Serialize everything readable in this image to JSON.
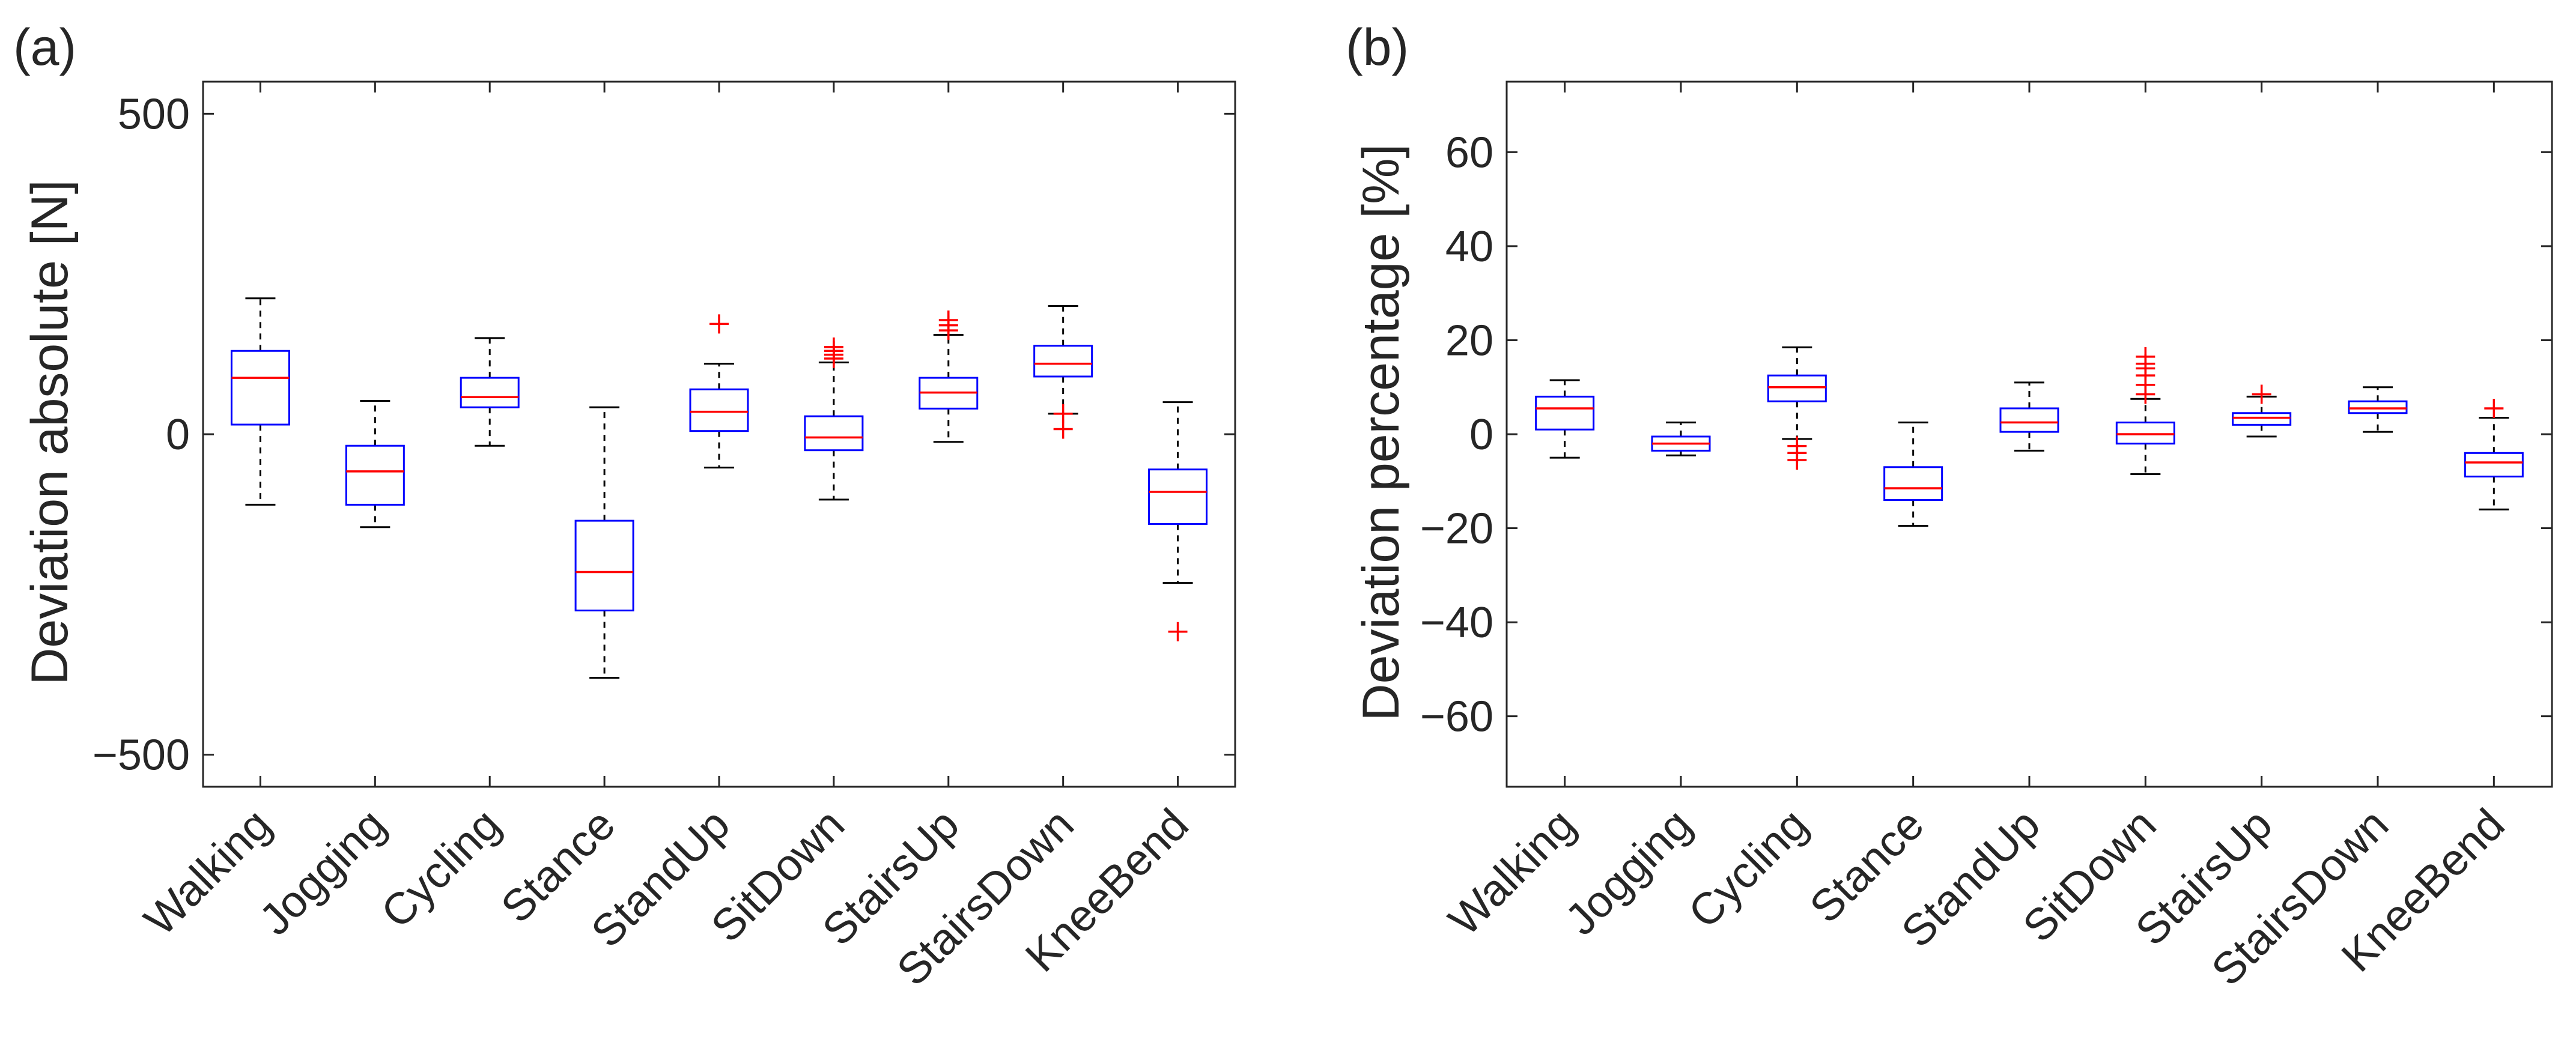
{
  "colors": {
    "box": "#0000FF",
    "median": "#FF0000",
    "whisker": "#000000",
    "outlier": "#FF0000",
    "axis": "#262626"
  },
  "chart_data": [
    {
      "type": "boxplot",
      "panel_label": "(a)",
      "title": "",
      "xlabel": "",
      "ylabel": "Deviation absolute [N]",
      "ylim": [
        -550,
        550
      ],
      "yticks": [
        -500,
        0,
        500
      ],
      "ytick_labels": [
        "−500",
        "0",
        "500"
      ],
      "grid": false,
      "categories": [
        "Walking",
        "Jogging",
        "Cycling",
        "Stance",
        "StandUp",
        "SitDown",
        "StairsUp",
        "StairsDown",
        "KneeBend"
      ],
      "boxes": [
        {
          "category": "Walking",
          "whisker_low": -110,
          "q1": 15,
          "median": 88,
          "q3": 130,
          "whisker_high": 212,
          "outliers": []
        },
        {
          "category": "Jogging",
          "whisker_low": -145,
          "q1": -110,
          "median": -58,
          "q3": -18,
          "whisker_high": 52,
          "outliers": []
        },
        {
          "category": "Cycling",
          "whisker_low": -18,
          "q1": 42,
          "median": 58,
          "q3": 88,
          "whisker_high": 150,
          "outliers": []
        },
        {
          "category": "Stance",
          "whisker_low": -380,
          "q1": -275,
          "median": -215,
          "q3": -135,
          "whisker_high": 42,
          "outliers": []
        },
        {
          "category": "StandUp",
          "whisker_low": -52,
          "q1": 5,
          "median": 35,
          "q3": 70,
          "whisker_high": 110,
          "outliers": [
            172
          ]
        },
        {
          "category": "SitDown",
          "whisker_low": -102,
          "q1": -25,
          "median": -5,
          "q3": 28,
          "whisker_high": 112,
          "outliers": [
            118,
            124,
            130,
            136
          ]
        },
        {
          "category": "StairsUp",
          "whisker_low": -12,
          "q1": 40,
          "median": 65,
          "q3": 88,
          "whisker_high": 155,
          "outliers": [
            162,
            170,
            178
          ]
        },
        {
          "category": "StairsDown",
          "whisker_low": 32,
          "q1": 90,
          "median": 110,
          "q3": 138,
          "whisker_high": 200,
          "outliers": [
            8,
            32
          ]
        },
        {
          "category": "KneeBend",
          "whisker_low": -232,
          "q1": -140,
          "median": -90,
          "q3": -55,
          "whisker_high": 50,
          "outliers": [
            -308
          ]
        }
      ]
    },
    {
      "type": "boxplot",
      "panel_label": "(b)",
      "title": "",
      "xlabel": "",
      "ylabel": "Deviation percentage [%]",
      "ylim": [
        -75,
        75
      ],
      "yticks": [
        -60,
        -40,
        -20,
        0,
        20,
        40,
        60
      ],
      "ytick_labels": [
        "−60",
        "−40",
        "−20",
        "0",
        "20",
        "40",
        "60"
      ],
      "grid": false,
      "categories": [
        "Walking",
        "Jogging",
        "Cycling",
        "Stance",
        "StandUp",
        "SitDown",
        "StairsUp",
        "StairsDown",
        "KneeBend"
      ],
      "boxes": [
        {
          "category": "Walking",
          "whisker_low": -5,
          "q1": 1,
          "median": 5.5,
          "q3": 8,
          "whisker_high": 11.5,
          "outliers": []
        },
        {
          "category": "Jogging",
          "whisker_low": -4.5,
          "q1": -3.5,
          "median": -2,
          "q3": -0.5,
          "whisker_high": 2.5,
          "outliers": []
        },
        {
          "category": "Cycling",
          "whisker_low": -1,
          "q1": 7,
          "median": 10,
          "q3": 12.5,
          "whisker_high": 18.5,
          "outliers": [
            -2.5,
            -4,
            -5.5
          ]
        },
        {
          "category": "Stance",
          "whisker_low": -19.5,
          "q1": -14,
          "median": -11.5,
          "q3": -7,
          "whisker_high": 2.5,
          "outliers": []
        },
        {
          "category": "StandUp",
          "whisker_low": -3.5,
          "q1": 0.5,
          "median": 2.5,
          "q3": 5.5,
          "whisker_high": 11,
          "outliers": []
        },
        {
          "category": "SitDown",
          "whisker_low": -8.5,
          "q1": -2,
          "median": 0,
          "q3": 2.5,
          "whisker_high": 7.5,
          "outliers": [
            8.5,
            10.5,
            12.5,
            14,
            15,
            16.5
          ]
        },
        {
          "category": "StairsUp",
          "whisker_low": -0.5,
          "q1": 2,
          "median": 3.5,
          "q3": 4.5,
          "whisker_high": 8,
          "outliers": [
            8.5
          ]
        },
        {
          "category": "StairsDown",
          "whisker_low": 0.5,
          "q1": 4.5,
          "median": 5.5,
          "q3": 7,
          "whisker_high": 10,
          "outliers": []
        },
        {
          "category": "KneeBend",
          "whisker_low": -16,
          "q1": -9,
          "median": -6,
          "q3": -4,
          "whisker_high": 3.5,
          "outliers": [
            5.5
          ]
        }
      ]
    }
  ]
}
